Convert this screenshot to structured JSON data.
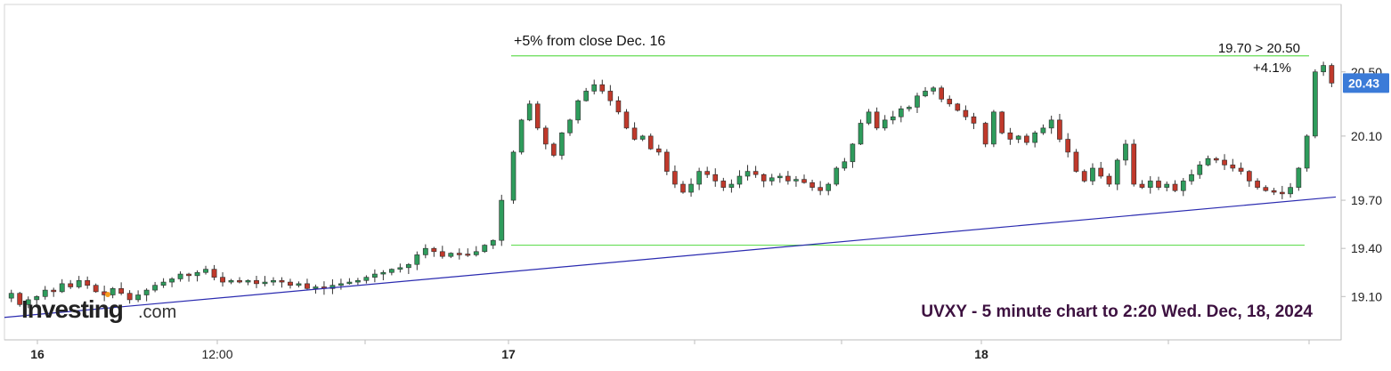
{
  "chart_data": {
    "type": "candlestick",
    "instrument_caption": "UVXY - 5 minute chart to 2:20 Wed. Dec, 18, 2024",
    "watermark": {
      "brand": "Investing",
      "suffix": ".com"
    },
    "y_axis": {
      "side": "right",
      "ylim": [
        18.83,
        20.92
      ],
      "ticks": [
        "20.50",
        "20.10",
        "19.70",
        "19.40",
        "19.10"
      ]
    },
    "x_axis": {
      "ticks": [
        "16",
        "12:00",
        "17",
        "18"
      ],
      "bold_ticks": [
        "16",
        "17",
        "18"
      ]
    },
    "last_price": {
      "value": 20.43,
      "label": "20.43"
    },
    "annotations": {
      "top_left": "+5% from close Dec. 16",
      "top_right_line1": "19.70 > 20.50",
      "top_right_line2": "+4.1%"
    },
    "horizontal_lines": [
      {
        "name": "upper-level",
        "value": 20.6,
        "color": "#66dd55"
      },
      {
        "name": "lower-level",
        "value": 19.42,
        "color": "#66dd55"
      }
    ],
    "trendline": {
      "color": "#2b2bb0",
      "start_value": 18.97,
      "end_value": 19.72
    },
    "colors": {
      "up": "#2e9c5c",
      "down": "#c0392b",
      "price_label_bg": "#3b7bd8",
      "caption": "#3d1140"
    },
    "session_prices": {
      "dec16": [
        19.12,
        19.05,
        19.08,
        19.1,
        19.14,
        19.13,
        19.18,
        19.16,
        19.2,
        19.17,
        19.13,
        19.11,
        19.15,
        19.12,
        19.08,
        19.11,
        19.14,
        19.17,
        19.19,
        19.21,
        19.24,
        19.23,
        19.25,
        19.27,
        19.22,
        19.19,
        19.2,
        19.19,
        19.2,
        19.18,
        19.19,
        19.2,
        19.19,
        19.17,
        19.18,
        19.15,
        19.16,
        19.15,
        19.17,
        19.18,
        19.19,
        19.2,
        19.22,
        19.24,
        19.25,
        19.27,
        19.28,
        19.3,
        19.36,
        19.4,
        19.38,
        19.35,
        19.37,
        19.36,
        19.36,
        19.38,
        19.42,
        19.45,
        19.7
      ],
      "dec17": [
        20.0,
        20.2,
        20.3,
        20.15,
        20.05,
        19.98,
        20.12,
        20.2,
        20.32,
        20.38,
        20.42,
        20.38,
        20.32,
        20.25,
        20.15,
        20.08,
        20.1,
        20.02,
        20.0,
        19.88,
        19.8,
        19.75,
        19.8,
        19.88,
        19.86,
        19.82,
        19.78,
        19.8,
        19.85,
        19.88,
        19.86,
        19.82,
        19.84,
        19.85,
        19.82,
        19.83,
        19.81,
        19.78,
        19.76,
        19.8,
        19.9,
        19.94,
        20.05,
        20.18,
        20.25,
        20.15,
        20.2,
        20.22,
        20.27,
        20.28,
        20.35,
        20.38,
        20.4,
        20.33,
        20.3,
        20.26,
        20.22,
        20.18
      ],
      "dec18": [
        20.05,
        20.25,
        20.12,
        20.08,
        20.1,
        20.06,
        20.12,
        20.15,
        20.2,
        20.08,
        20.0,
        19.88,
        19.82,
        19.9,
        19.85,
        19.8,
        19.95,
        20.05,
        19.8,
        19.78,
        19.82,
        19.78,
        19.8,
        19.76,
        19.82,
        19.86,
        19.92,
        19.96,
        19.95,
        19.92,
        19.9,
        19.88,
        19.82,
        19.78,
        19.76,
        19.75,
        19.74,
        19.78,
        19.9,
        20.1,
        20.5,
        20.54,
        20.43
      ]
    }
  }
}
